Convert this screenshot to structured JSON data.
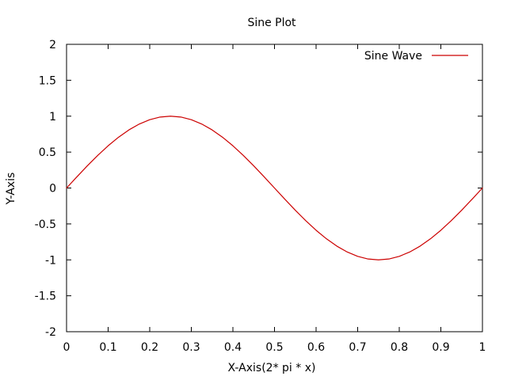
{
  "chart_data": {
    "type": "line",
    "title": "Sine Plot",
    "xlabel": "X-Axis(2* pi * x)",
    "ylabel": "Y-Axis",
    "xlim": [
      0,
      1
    ],
    "ylim": [
      -2,
      2
    ],
    "grid": false,
    "legend_position": "top-right",
    "x_ticks": [
      0,
      0.1,
      0.2,
      0.3,
      0.4,
      0.5,
      0.6,
      0.7,
      0.8,
      0.9,
      1
    ],
    "x_tick_labels": [
      "0",
      "0.1",
      "0.2",
      "0.3",
      "0.4",
      "0.5",
      "0.6",
      "0.7",
      "0.8",
      "0.9",
      "1"
    ],
    "y_ticks": [
      -2,
      -1.5,
      -1,
      -0.5,
      0,
      0.5,
      1,
      1.5,
      2
    ],
    "y_tick_labels": [
      "-2",
      "-1.5",
      "-1",
      "-0.5",
      "0",
      "0.5",
      "1",
      "1.5",
      "2"
    ],
    "series": [
      {
        "name": "Sine Wave",
        "color": "#cc0000",
        "x": [
          0,
          0.025,
          0.05,
          0.075,
          0.1,
          0.125,
          0.15,
          0.175,
          0.2,
          0.225,
          0.25,
          0.275,
          0.3,
          0.325,
          0.35,
          0.375,
          0.4,
          0.425,
          0.45,
          0.475,
          0.5,
          0.525,
          0.55,
          0.575,
          0.6,
          0.625,
          0.65,
          0.675,
          0.7,
          0.725,
          0.75,
          0.775,
          0.8,
          0.825,
          0.85,
          0.875,
          0.9,
          0.925,
          0.95,
          0.975,
          1
        ],
        "y": [
          0,
          0.156,
          0.309,
          0.454,
          0.588,
          0.707,
          0.809,
          0.891,
          0.951,
          0.988,
          1,
          0.988,
          0.951,
          0.891,
          0.809,
          0.707,
          0.588,
          0.454,
          0.309,
          0.156,
          0,
          -0.156,
          -0.309,
          -0.454,
          -0.588,
          -0.707,
          -0.809,
          -0.891,
          -0.951,
          -0.988,
          -1,
          -0.988,
          -0.951,
          -0.891,
          -0.809,
          -0.707,
          -0.588,
          -0.454,
          -0.309,
          -0.156,
          0
        ]
      }
    ]
  }
}
